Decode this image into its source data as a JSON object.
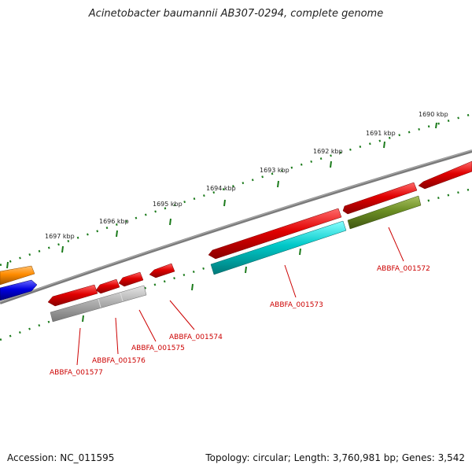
{
  "title": "Acinetobacter baumannii AB307-0294, complete genome",
  "footer": {
    "accession": "Accession: NC_011595",
    "info": "Topology: circular; Length: 3,760,981 bp; Genes: 3,542"
  },
  "scale_labels": [
    "1690 kbp",
    "1691 kbp",
    "1692 kbp",
    "1693 kbp",
    "1694 kbp",
    "1695 kbp",
    "1696 kbp",
    "1697 kbp"
  ],
  "gene_labels": [
    "ABBFA_001572",
    "ABBFA_001573",
    "ABBFA_001574",
    "ABBFA_001575",
    "ABBFA_001576",
    "ABBFA_001577"
  ],
  "colors": {
    "red": "#e00000",
    "cyan": "#00c8c8",
    "olive": "#6b8e23",
    "gray": "#b0b0b0",
    "orange": "#ff8c00",
    "blue": "#0000e0",
    "backbone": "#808080",
    "scale": "#1a7a1a",
    "label": "#cc0000"
  }
}
